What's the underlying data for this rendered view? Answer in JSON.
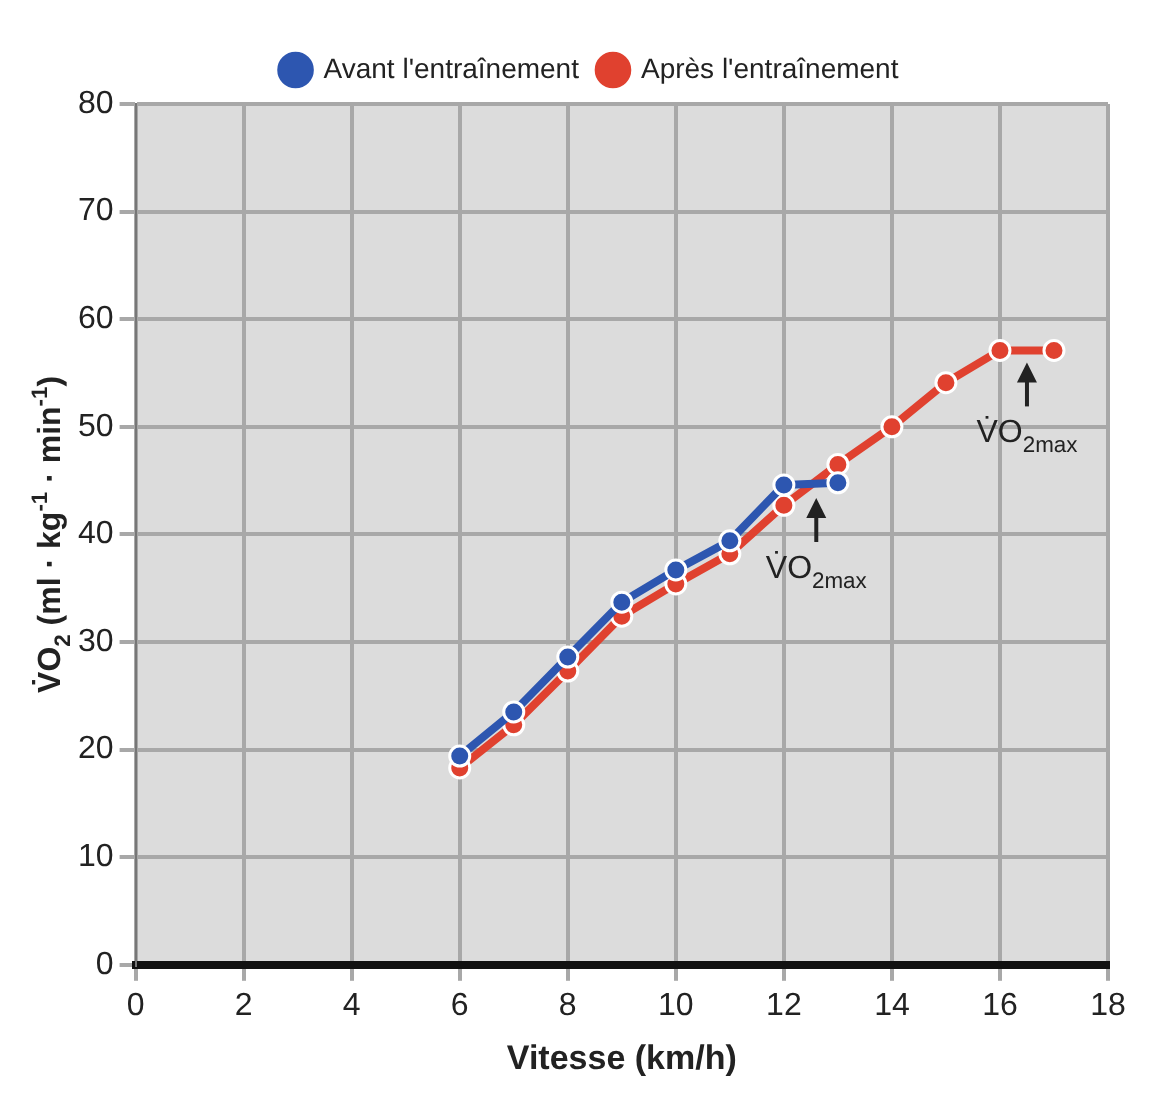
{
  "chart_data": {
    "type": "line",
    "xlabel": "Vitesse (km/h)",
    "ylabel": "V̇O$_{2}$ (ml · kg$^{-1}$ · min$^{-1}$)",
    "series": [
      {
        "name": "Avant l'entraînement",
        "color": "#2d56b0",
        "x": [
          6,
          7,
          8,
          9,
          10,
          11,
          12,
          13
        ],
        "values": [
          19.4,
          23.5,
          28.6,
          33.7,
          36.7,
          39.4,
          44.6,
          44.8
        ]
      },
      {
        "name": "Après l'entraînement",
        "color": "#e0412f",
        "x": [
          6,
          7,
          8,
          9,
          10,
          11,
          12,
          13,
          14,
          15,
          16,
          17
        ],
        "values": [
          18.3,
          22.3,
          27.3,
          32.4,
          35.4,
          38.2,
          42.7,
          46.5,
          50,
          54.1,
          57.1,
          57.1
        ]
      }
    ],
    "xlim": [
      0,
      18
    ],
    "xticks": [
      0,
      2,
      4,
      6,
      8,
      10,
      12,
      14,
      16,
      18
    ],
    "ylim": [
      0,
      80
    ],
    "yticks": [
      0,
      10,
      20,
      30,
      40,
      50,
      60,
      70,
      80
    ],
    "grid": true,
    "legend": "top",
    "marker": "circle",
    "line_style": "solid",
    "annotations": [
      {
        "text": "V̇O$_{2max}$",
        "x": 12.6,
        "y": 44.5
      },
      {
        "text": "V̇O$_{2max}$",
        "x": 16.5,
        "y": 57.1
      }
    ]
  }
}
